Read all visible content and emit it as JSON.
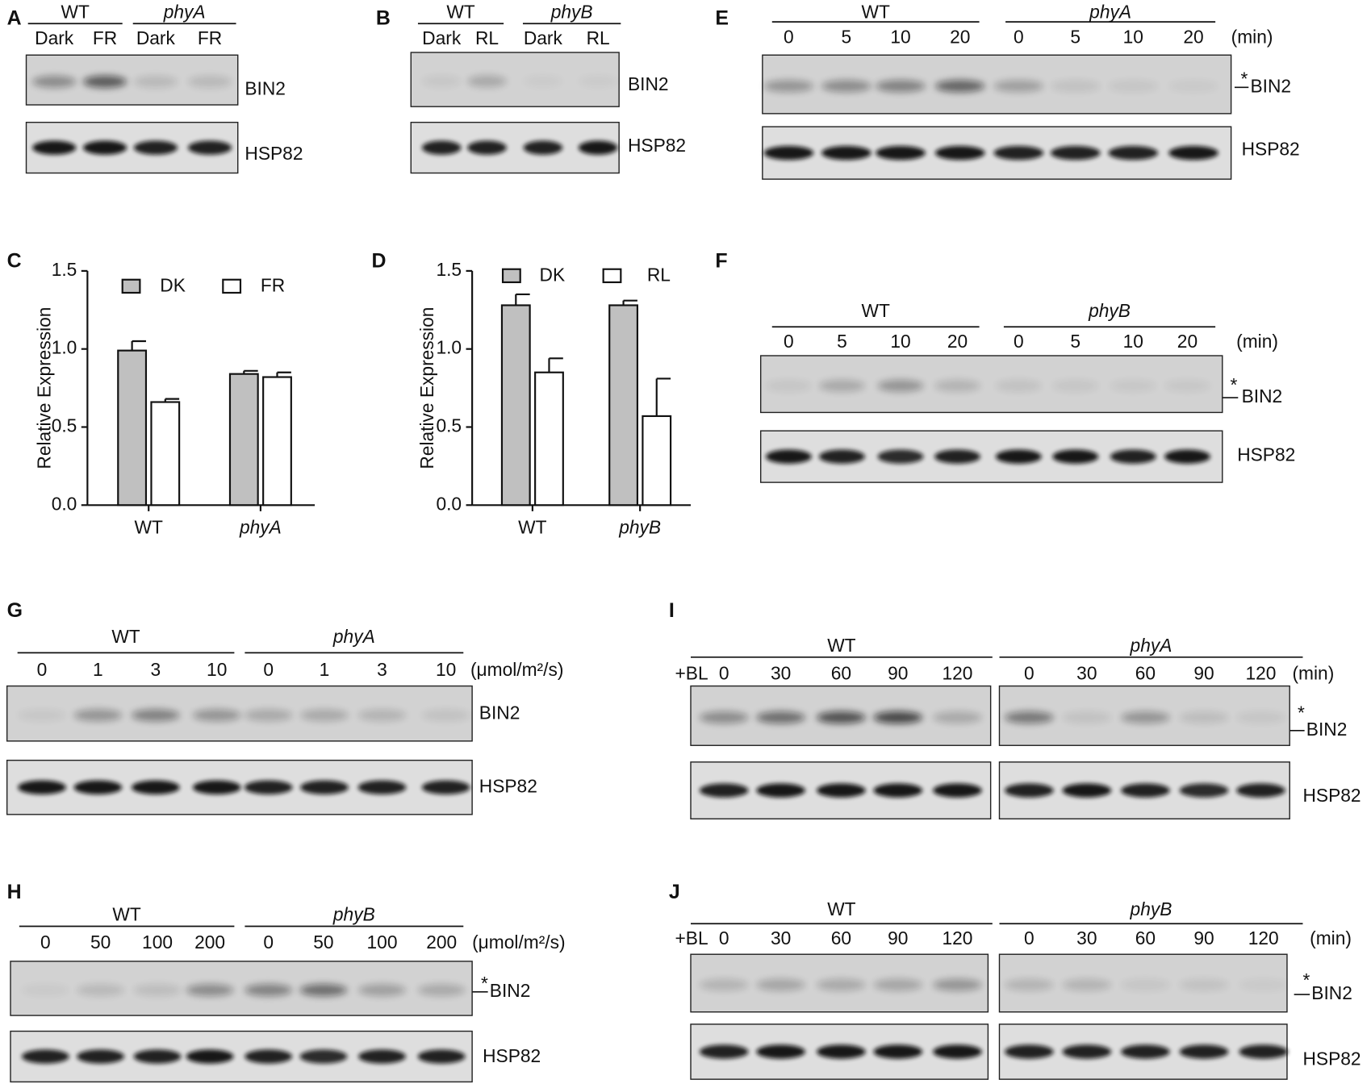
{
  "blots": [
    {
      "letter": "A",
      "groups": [
        {
          "name": "WT",
          "italic": false
        },
        {
          "name": "phyA",
          "italic": true
        }
      ],
      "lanes": [
        "Dark",
        "FR",
        "Dark",
        "FR"
      ],
      "rows": [
        "BIN2",
        "HSP82"
      ]
    },
    {
      "letter": "B",
      "groups": [
        {
          "name": "WT",
          "italic": false
        },
        {
          "name": "phyB",
          "italic": true
        }
      ],
      "lanes": [
        "Dark",
        "RL",
        "Dark",
        "RL"
      ],
      "rows": [
        "BIN2",
        "HSP82"
      ]
    },
    {
      "letter": "E",
      "groups": [
        {
          "name": "WT",
          "italic": false
        },
        {
          "name": "phyA",
          "italic": true
        }
      ],
      "lanes": [
        "0",
        "5",
        "10",
        "20",
        "0",
        "5",
        "10",
        "20"
      ],
      "unit": "(min)",
      "marker": "*",
      "rows": [
        "BIN2",
        "HSP82"
      ]
    },
    {
      "letter": "F",
      "groups": [
        {
          "name": "WT",
          "italic": false
        },
        {
          "name": "phyB",
          "italic": true
        }
      ],
      "lanes": [
        "0",
        "5",
        "10",
        "20",
        "0",
        "5",
        "10",
        "20"
      ],
      "unit": "(min)",
      "marker": "*",
      "rows": [
        "BIN2",
        "HSP82"
      ]
    },
    {
      "letter": "G",
      "groups": [
        {
          "name": "WT",
          "italic": false
        },
        {
          "name": "phyA",
          "italic": true
        }
      ],
      "lanes": [
        "0",
        "1",
        "3",
        "10",
        "0",
        "1",
        "3",
        "10"
      ],
      "unit": "(μmol/m²/s)",
      "rows": [
        "BIN2",
        "HSP82"
      ]
    },
    {
      "letter": "H",
      "groups": [
        {
          "name": "WT",
          "italic": false
        },
        {
          "name": "phyB",
          "italic": true
        }
      ],
      "lanes": [
        "0",
        "50",
        "100",
        "200",
        "0",
        "50",
        "100",
        "200"
      ],
      "unit": "(μmol/m²/s)",
      "marker": "*",
      "rows": [
        "BIN2",
        "HSP82"
      ]
    },
    {
      "letter": "I",
      "groups": [
        {
          "name": "WT",
          "italic": false
        },
        {
          "name": "phyA",
          "italic": true
        }
      ],
      "prefix": "+BL",
      "lanes": [
        "0",
        "30",
        "60",
        "90",
        "120",
        "0",
        "30",
        "60",
        "90",
        "120"
      ],
      "unit": "(min)",
      "marker": "*",
      "rows": [
        "BIN2",
        "HSP82"
      ]
    },
    {
      "letter": "J",
      "groups": [
        {
          "name": "WT",
          "italic": false
        },
        {
          "name": "phyB",
          "italic": true
        }
      ],
      "prefix": "+BL",
      "lanes": [
        "0",
        "30",
        "60",
        "90",
        "120",
        "0",
        "30",
        "60",
        "90",
        "120"
      ],
      "unit": "(min)",
      "marker": "*",
      "rows": [
        "BIN2",
        "HSP82"
      ]
    }
  ],
  "chart_data": [
    {
      "type": "bar",
      "letter": "C",
      "ylabel": "Relative Expression",
      "categories": [
        "WT",
        "phyA"
      ],
      "italic_categories": [
        false,
        true
      ],
      "series": [
        {
          "name": "DK",
          "color": "#c0c0c0",
          "values": [
            0.99,
            0.84
          ],
          "errors": [
            0.06,
            0.02
          ]
        },
        {
          "name": "FR",
          "color": "#ffffff",
          "values": [
            0.66,
            0.82
          ],
          "errors": [
            0.02,
            0.03
          ]
        }
      ],
      "ylim": [
        0,
        1.5
      ],
      "yticks": [
        {
          "value": 0,
          "label": "0.0"
        },
        0.5,
        {
          "value": 1,
          "label": "1.0"
        },
        1.5
      ]
    },
    {
      "type": "bar",
      "letter": "D",
      "ylabel": "Relative Expression",
      "categories": [
        "WT",
        "phyB"
      ],
      "italic_categories": [
        false,
        true
      ],
      "series": [
        {
          "name": "DK",
          "color": "#c0c0c0",
          "values": [
            1.28,
            1.28
          ],
          "errors": [
            0.07,
            0.03
          ]
        },
        {
          "name": "RL",
          "color": "#ffffff",
          "values": [
            0.85,
            0.57
          ],
          "errors": [
            0.09,
            0.24
          ]
        }
      ],
      "ylim": [
        0,
        1.5
      ],
      "yticks": [
        {
          "value": 0,
          "label": "0.0"
        },
        0.5,
        {
          "value": 1,
          "label": "1.0"
        },
        1.5
      ]
    }
  ]
}
